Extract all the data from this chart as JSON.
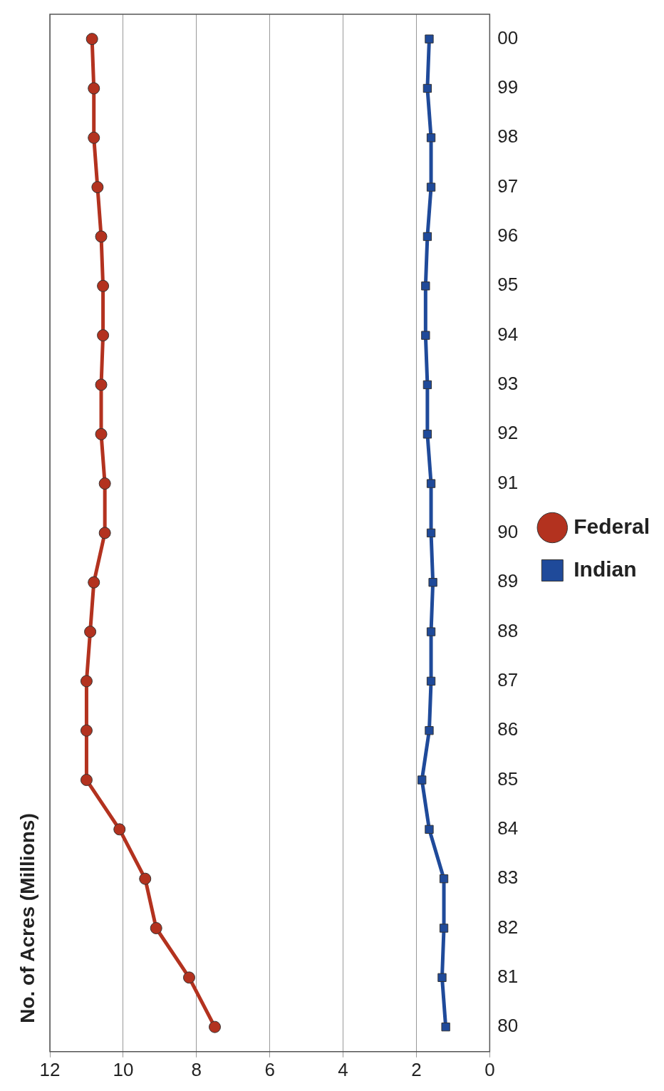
{
  "chart_data": {
    "type": "line",
    "orientation": "horizontal",
    "ylabel": "No. of Acres (Millions)",
    "categories": [
      "00",
      "99",
      "98",
      "97",
      "96",
      "95",
      "94",
      "93",
      "92",
      "91",
      "90",
      "89",
      "88",
      "87",
      "86",
      "85",
      "84",
      "83",
      "82",
      "81",
      "80"
    ],
    "series": [
      {
        "name": "Federal",
        "color": "#b3321f",
        "marker": "circle",
        "values": [
          10.85,
          10.8,
          10.8,
          10.7,
          10.6,
          10.55,
          10.55,
          10.6,
          10.6,
          10.5,
          10.5,
          10.8,
          10.9,
          11.0,
          11.0,
          11.0,
          10.1,
          9.4,
          9.1,
          8.2,
          7.5
        ]
      },
      {
        "name": "Indian",
        "color": "#1f4a9a",
        "marker": "square",
        "values": [
          1.65,
          1.7,
          1.6,
          1.6,
          1.7,
          1.75,
          1.75,
          1.7,
          1.7,
          1.6,
          1.6,
          1.55,
          1.6,
          1.6,
          1.65,
          1.85,
          1.65,
          1.25,
          1.25,
          1.3,
          1.2
        ]
      }
    ],
    "xlim": [
      12,
      0
    ],
    "xticks": [
      12,
      10,
      8,
      6,
      4,
      2,
      0
    ],
    "grid": "x",
    "legend": "right",
    "line_style": "solid"
  }
}
